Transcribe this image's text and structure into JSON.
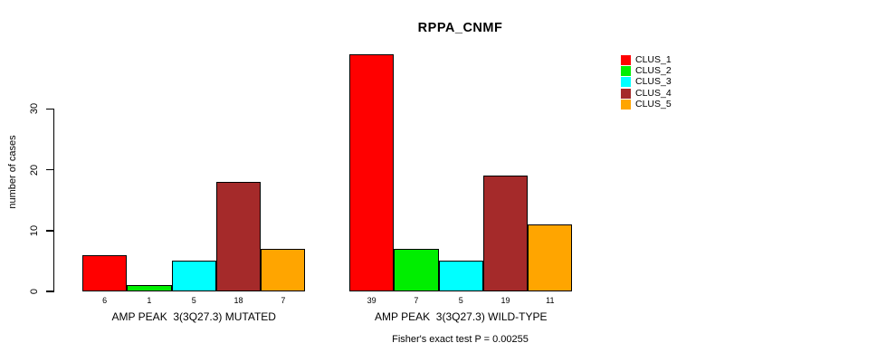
{
  "chart_data": {
    "type": "bar",
    "title": "RPPA_CNMF",
    "ylabel": "number of cases",
    "xlabel": "",
    "categories": [
      "AMP PEAK  3(3Q27.3) MUTATED",
      "AMP PEAK  3(3Q27.3) WILD-TYPE"
    ],
    "series": [
      {
        "name": "CLUS_1",
        "color": "#FF0000",
        "values": [
          6,
          39
        ]
      },
      {
        "name": "CLUS_2",
        "color": "#00EE00",
        "values": [
          1,
          7
        ]
      },
      {
        "name": "CLUS_3",
        "color": "#00FFFF",
        "values": [
          5,
          5
        ]
      },
      {
        "name": "CLUS_4",
        "color": "#A52A2A",
        "values": [
          18,
          19
        ]
      },
      {
        "name": "CLUS_5",
        "color": "#FFA500",
        "values": [
          7,
          11
        ]
      }
    ],
    "bar_value_labels": [
      [
        6,
        1,
        5,
        18,
        7
      ],
      [
        39,
        7,
        5,
        19,
        11
      ]
    ],
    "yticks": [
      0,
      10,
      20,
      30
    ],
    "ylim": [
      0,
      39
    ],
    "grid": false,
    "legend_position": "topright",
    "annotation": "Fisher's exact test P = 0.00255"
  }
}
